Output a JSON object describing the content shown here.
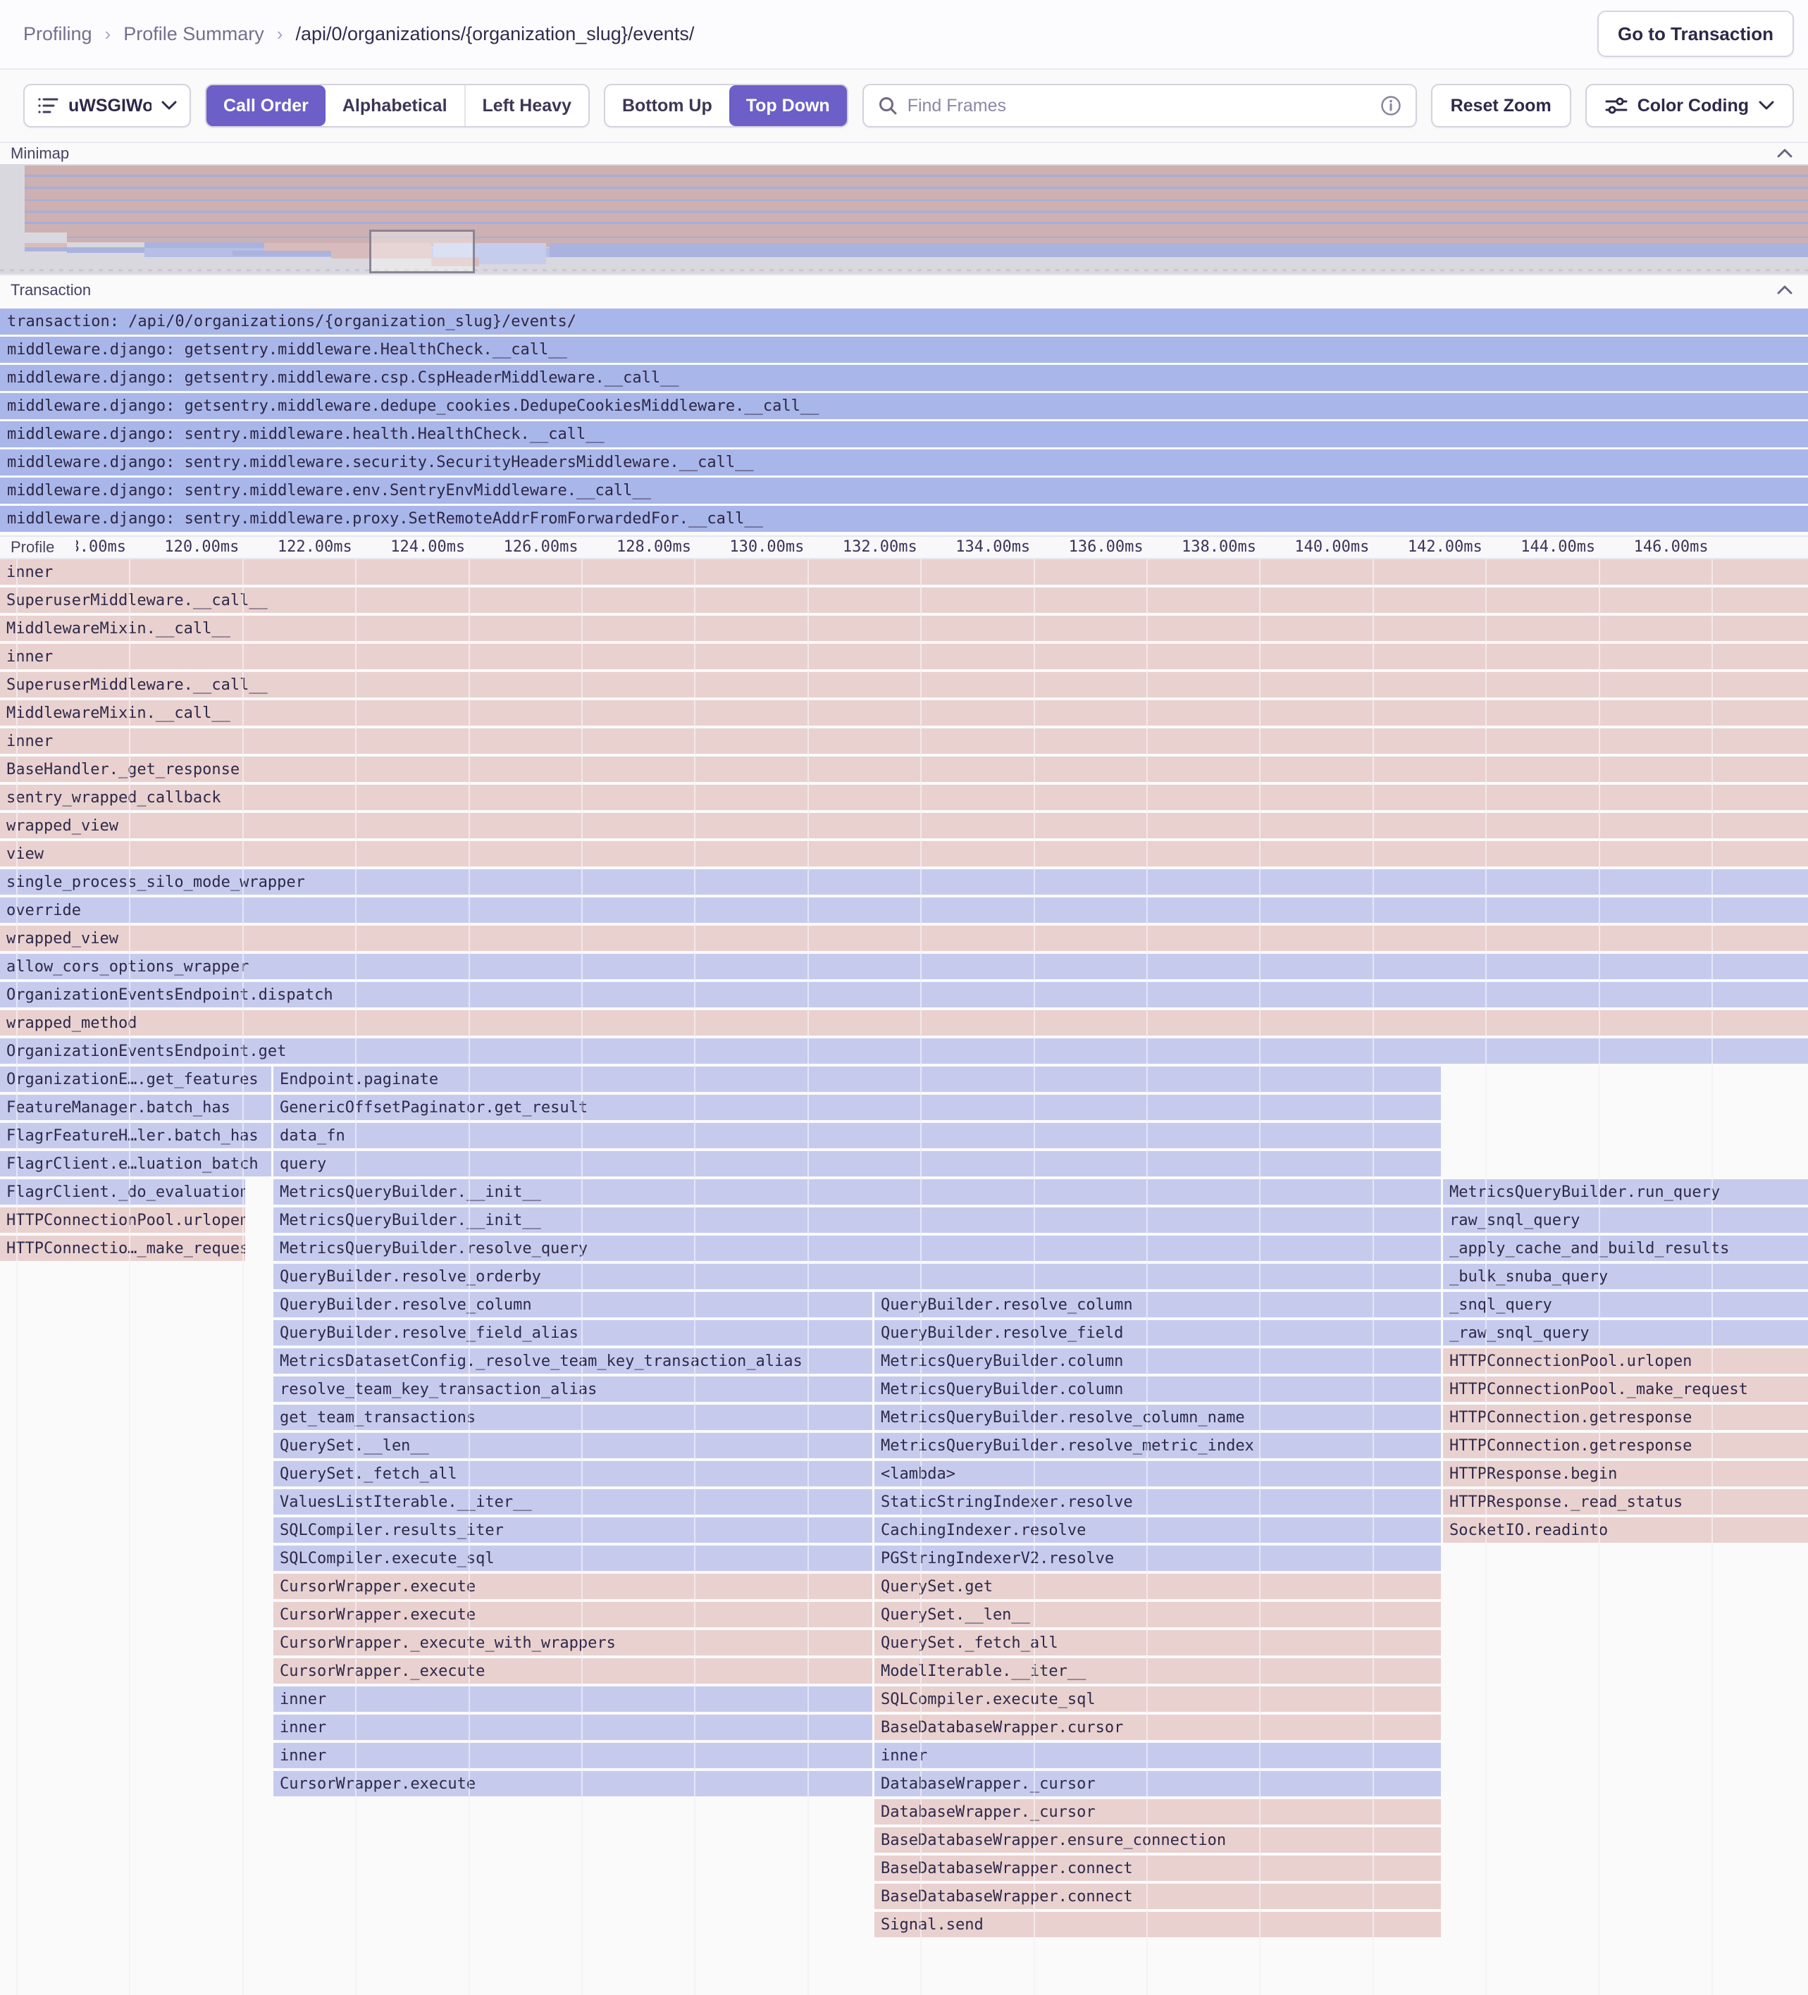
{
  "header": {
    "breadcrumb": [
      "Profiling",
      "Profile Summary",
      "/api/0/organizations/{organization_slug}/events/"
    ],
    "go_to_transaction_label": "Go to Transaction"
  },
  "toolbar": {
    "thread_selector": {
      "label": "uWSGIWor…"
    },
    "sort_tabs": {
      "options": [
        "Call Order",
        "Alphabetical",
        "Left Heavy"
      ],
      "selected": "Call Order"
    },
    "direction_tabs": {
      "options": [
        "Bottom Up",
        "Top Down"
      ],
      "selected": "Top Down"
    },
    "search": {
      "placeholder": "Find Frames",
      "value": ""
    },
    "reset_zoom_label": "Reset Zoom",
    "color_coding_label": "Color Coding"
  },
  "sections": {
    "minimap": "Minimap",
    "transaction": "Transaction",
    "profile": "Profile"
  },
  "transaction_rows": [
    "transaction: /api/0/organizations/{organization_slug}/events/",
    "middleware.django: getsentry.middleware.HealthCheck.__call__",
    "middleware.django: getsentry.middleware.csp.CspHeaderMiddleware.__call__",
    "middleware.django: getsentry.middleware.dedupe_cookies.DedupeCookiesMiddleware.__call__",
    "middleware.django: sentry.middleware.health.HealthCheck.__call__",
    "middleware.django: sentry.middleware.security.SecurityHeadersMiddleware.__call__",
    "middleware.django: sentry.middleware.env.SentryEnvMiddleware.__call__",
    "middleware.django: sentry.middleware.proxy.SetRemoteAddrFromForwardedFor.__call__"
  ],
  "ruler": {
    "tick_labels": [
      "118.00ms",
      "120.00ms",
      "122.00ms",
      "124.00ms",
      "126.00ms",
      "128.00ms",
      "130.00ms",
      "132.00ms",
      "134.00ms",
      "136.00ms",
      "138.00ms",
      "140.00ms",
      "142.00ms",
      "144.00ms",
      "146.00ms"
    ],
    "tick_start_x": 183,
    "tick_spacing": 160.4,
    "gridline_count": 16
  },
  "colors": {
    "accent": "#6C5FC7",
    "frame_pink": "#e9d1d0",
    "frame_blue": "#c6cbee",
    "transaction_span_blue": "#a9b6e9"
  },
  "frames": [
    [
      [
        0,
        2566,
        "p",
        "inner"
      ]
    ],
    [
      [
        0,
        2566,
        "p",
        "SuperuserMiddleware.__call__"
      ]
    ],
    [
      [
        0,
        2566,
        "p",
        "MiddlewareMixin.__call__"
      ]
    ],
    [
      [
        0,
        2566,
        "p",
        "inner"
      ]
    ],
    [
      [
        0,
        2566,
        "p",
        "SuperuserMiddleware.__call__"
      ]
    ],
    [
      [
        0,
        2566,
        "p",
        "MiddlewareMixin.__call__"
      ]
    ],
    [
      [
        0,
        2566,
        "p",
        "inner"
      ]
    ],
    [
      [
        0,
        2566,
        "p",
        "BaseHandler._get_response"
      ]
    ],
    [
      [
        0,
        2566,
        "p",
        "sentry_wrapped_callback"
      ]
    ],
    [
      [
        0,
        2566,
        "p",
        "wrapped_view"
      ]
    ],
    [
      [
        0,
        2566,
        "p",
        "view"
      ]
    ],
    [
      [
        0,
        2566,
        "b",
        "single_process_silo_mode_wrapper"
      ]
    ],
    [
      [
        0,
        2566,
        "b",
        "override"
      ]
    ],
    [
      [
        0,
        2566,
        "p",
        "wrapped_view"
      ]
    ],
    [
      [
        0,
        2566,
        "b",
        "allow_cors_options_wrapper"
      ]
    ],
    [
      [
        0,
        2566,
        "b",
        "OrganizationEventsEndpoint.dispatch"
      ]
    ],
    [
      [
        0,
        2566,
        "p",
        "wrapped_method"
      ]
    ],
    [
      [
        0,
        2566,
        "b",
        "OrganizationEventsEndpoint.get"
      ]
    ],
    [
      [
        0,
        385,
        "b",
        "OrganizationE….get_features"
      ],
      [
        388,
        1657,
        "b",
        "Endpoint.paginate"
      ]
    ],
    [
      [
        0,
        385,
        "b",
        "FeatureManager.batch_has"
      ],
      [
        388,
        1657,
        "b",
        "GenericOffsetPaginator.get_result"
      ]
    ],
    [
      [
        0,
        385,
        "b",
        "FlagrFeatureH…ler.batch_has"
      ],
      [
        388,
        1657,
        "b",
        "data_fn"
      ]
    ],
    [
      [
        0,
        385,
        "b",
        "FlagrClient.e…luation_batch"
      ],
      [
        388,
        1657,
        "b",
        "query"
      ]
    ],
    [
      [
        0,
        348,
        "b",
        "FlagrClient._do_evaluation"
      ],
      [
        388,
        1657,
        "b",
        "MetricsQueryBuilder.__init__"
      ],
      [
        2048,
        518,
        "b",
        "MetricsQueryBuilder.run_query"
      ]
    ],
    [
      [
        0,
        348,
        "p",
        "HTTPConnectionPool.urlopen"
      ],
      [
        388,
        1657,
        "b",
        "MetricsQueryBuilder.__init__"
      ],
      [
        2048,
        518,
        "b",
        "raw_snql_query"
      ]
    ],
    [
      [
        0,
        348,
        "p",
        "HTTPConnectio…_make_request"
      ],
      [
        388,
        1657,
        "b",
        "MetricsQueryBuilder.resolve_query"
      ],
      [
        2048,
        518,
        "b",
        "_apply_cache_and_build_results"
      ]
    ],
    [
      [
        388,
        1657,
        "b",
        "QueryBuilder.resolve_orderby"
      ],
      [
        2048,
        518,
        "b",
        "_bulk_snuba_query"
      ]
    ],
    [
      [
        388,
        850,
        "b",
        "QueryBuilder.resolve_column"
      ],
      [
        1241,
        804,
        "b",
        "QueryBuilder.resolve_column"
      ],
      [
        2048,
        518,
        "b",
        "_snql_query"
      ]
    ],
    [
      [
        388,
        850,
        "b",
        "QueryBuilder.resolve_field_alias"
      ],
      [
        1241,
        804,
        "b",
        "QueryBuilder.resolve_field"
      ],
      [
        2048,
        518,
        "b",
        "_raw_snql_query"
      ]
    ],
    [
      [
        388,
        850,
        "b",
        "MetricsDatasetConfig._resolve_team_key_transaction_alias"
      ],
      [
        1241,
        804,
        "b",
        "MetricsQueryBuilder.column"
      ],
      [
        2048,
        518,
        "p",
        "HTTPConnectionPool.urlopen"
      ]
    ],
    [
      [
        388,
        850,
        "b",
        "resolve_team_key_transaction_alias"
      ],
      [
        1241,
        804,
        "b",
        "MetricsQueryBuilder.column"
      ],
      [
        2048,
        518,
        "p",
        "HTTPConnectionPool._make_request"
      ]
    ],
    [
      [
        388,
        850,
        "b",
        "get_team_transactions"
      ],
      [
        1241,
        804,
        "b",
        "MetricsQueryBuilder.resolve_column_name"
      ],
      [
        2048,
        518,
        "p",
        "HTTPConnection.getresponse"
      ]
    ],
    [
      [
        388,
        850,
        "b",
        "QuerySet.__len__"
      ],
      [
        1241,
        804,
        "b",
        "MetricsQueryBuilder.resolve_metric_index"
      ],
      [
        2048,
        518,
        "p",
        "HTTPConnection.getresponse"
      ]
    ],
    [
      [
        388,
        850,
        "b",
        "QuerySet._fetch_all"
      ],
      [
        1241,
        804,
        "b",
        "<lambda>"
      ],
      [
        2048,
        518,
        "p",
        "HTTPResponse.begin"
      ]
    ],
    [
      [
        388,
        850,
        "b",
        "ValuesListIterable.__iter__"
      ],
      [
        1241,
        804,
        "b",
        "StaticStringIndexer.resolve"
      ],
      [
        2048,
        518,
        "p",
        "HTTPResponse._read_status"
      ]
    ],
    [
      [
        388,
        850,
        "b",
        "SQLCompiler.results_iter"
      ],
      [
        1241,
        804,
        "b",
        "CachingIndexer.resolve"
      ],
      [
        2048,
        518,
        "p",
        "SocketIO.readinto"
      ]
    ],
    [
      [
        388,
        850,
        "b",
        "SQLCompiler.execute_sql"
      ],
      [
        1241,
        804,
        "b",
        "PGStringIndexerV2.resolve"
      ]
    ],
    [
      [
        388,
        850,
        "p",
        "CursorWrapper.execute"
      ],
      [
        1241,
        804,
        "p",
        "QuerySet.get"
      ]
    ],
    [
      [
        388,
        850,
        "p",
        "CursorWrapper.execute"
      ],
      [
        1241,
        804,
        "p",
        "QuerySet.__len__"
      ]
    ],
    [
      [
        388,
        850,
        "p",
        "CursorWrapper._execute_with_wrappers"
      ],
      [
        1241,
        804,
        "p",
        "QuerySet._fetch_all"
      ]
    ],
    [
      [
        388,
        850,
        "p",
        "CursorWrapper._execute"
      ],
      [
        1241,
        804,
        "p",
        "ModelIterable.__iter__"
      ]
    ],
    [
      [
        388,
        850,
        "b",
        "inner"
      ],
      [
        1241,
        804,
        "p",
        "SQLCompiler.execute_sql"
      ]
    ],
    [
      [
        388,
        850,
        "b",
        "inner"
      ],
      [
        1241,
        804,
        "p",
        "BaseDatabaseWrapper.cursor"
      ]
    ],
    [
      [
        388,
        850,
        "b",
        "inner"
      ],
      [
        1241,
        804,
        "b",
        "inner"
      ]
    ],
    [
      [
        388,
        850,
        "b",
        "CursorWrapper.execute"
      ],
      [
        1241,
        804,
        "b",
        "DatabaseWrapper._cursor"
      ]
    ],
    [
      [
        1241,
        804,
        "p",
        "DatabaseWrapper._cursor"
      ]
    ],
    [
      [
        1241,
        804,
        "p",
        "BaseDatabaseWrapper.ensure_connection"
      ]
    ],
    [
      [
        1241,
        804,
        "p",
        "BaseDatabaseWrapper.connect"
      ]
    ],
    [
      [
        1241,
        804,
        "p",
        "BaseDatabaseWrapper.connect"
      ]
    ],
    [
      [
        1241,
        804,
        "p",
        "Signal.send"
      ]
    ]
  ]
}
